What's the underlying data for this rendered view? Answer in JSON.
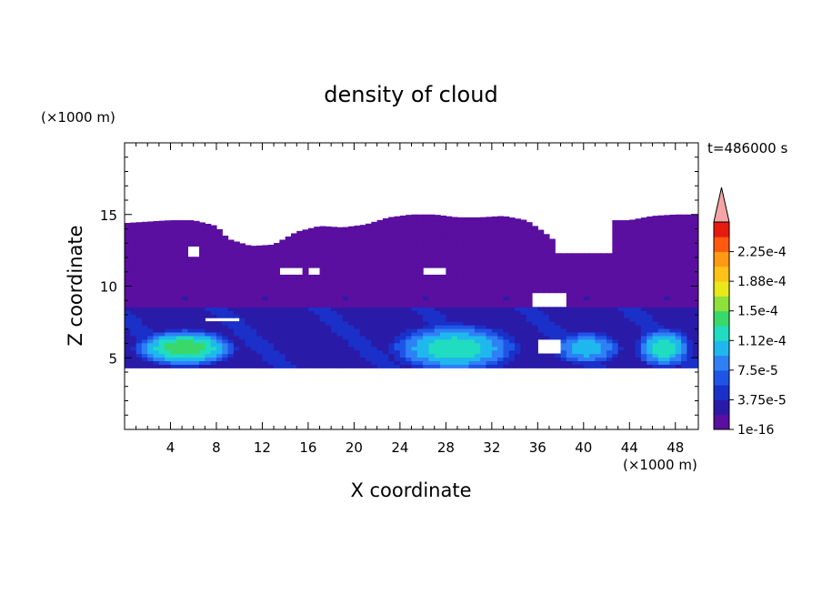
{
  "chart_data": {
    "type": "heatmap",
    "title": "density of cloud",
    "xlabel": "X coordinate",
    "ylabel": "Z coordinate",
    "x_unit": "(×1000 m)",
    "y_unit": "(×1000 m)",
    "time_label": "t=486000 s",
    "xlim": [
      0,
      50
    ],
    "ylim": [
      0,
      20
    ],
    "x_ticks": [
      4,
      8,
      12,
      16,
      20,
      24,
      28,
      32,
      36,
      40,
      44,
      48
    ],
    "y_ticks": [
      5,
      10,
      15
    ],
    "grid": false,
    "colorbar": {
      "position": "right",
      "extend": "max",
      "labels": [
        "1e-16",
        "3.75e-5",
        "7.5e-5",
        "1.12e-4",
        "1.5e-4",
        "1.88e-4",
        "2.25e-4"
      ],
      "levels": [
        1e-16,
        1.875e-05,
        3.75e-05,
        5.625e-05,
        7.5e-05,
        9.375e-05,
        0.000112,
        0.000131,
        0.00015,
        0.000169,
        0.000188,
        0.000206,
        0.000225,
        0.000244
      ],
      "colors": [
        "#5a0fa0",
        "#2a1aa8",
        "#1a30c8",
        "#1f55e6",
        "#2f80f5",
        "#1fb8ee",
        "#20dcc0",
        "#3ad86a",
        "#8ee03a",
        "#e8e81a",
        "#ffc218",
        "#ff9a12",
        "#ff5a10",
        "#e81a10"
      ],
      "extend_color": "#f4a6a6"
    },
    "cloud_layer": {
      "base_z": 4.3,
      "top_z_profile": {
        "x": [
          0,
          2,
          4,
          6,
          8,
          9,
          11,
          13,
          15,
          17,
          19,
          21,
          23,
          25,
          27,
          29,
          31,
          33,
          35,
          36.5,
          38,
          40,
          42,
          44,
          46,
          48,
          50
        ],
        "z": [
          14.4,
          14.5,
          14.6,
          14.6,
          14.2,
          13.3,
          12.8,
          12.9,
          13.8,
          14.2,
          14.1,
          14.3,
          14.8,
          15.0,
          15.0,
          14.8,
          14.8,
          14.9,
          14.6,
          13.8,
          12.8,
          13.5,
          14.6,
          14.6,
          14.9,
          15.0,
          15.0
        ]
      },
      "dense_cores": [
        {
          "x_range": [
            0,
            10.5
          ],
          "z_range": [
            4.3,
            6.8
          ],
          "peak": 0.000112
        },
        {
          "x_range": [
            22,
            35.5
          ],
          "z_range": [
            4.3,
            7.6
          ],
          "peak": 9.375e-05
        },
        {
          "x_range": [
            36.5,
            44
          ],
          "z_range": [
            4.3,
            6.6
          ],
          "peak": 7.5e-05
        },
        {
          "x_range": [
            44,
            50
          ],
          "z_range": [
            4.3,
            7.0
          ],
          "peak": 9.375e-05
        }
      ],
      "clear_gaps": [
        {
          "x_range": [
            5.5,
            6.5
          ],
          "z_range": [
            12.0,
            12.8
          ]
        },
        {
          "x_range": [
            13.5,
            15.5
          ],
          "z_range": [
            10.8,
            11.3
          ]
        },
        {
          "x_range": [
            16,
            17
          ],
          "z_range": [
            10.8,
            11.2
          ]
        },
        {
          "x_range": [
            37.5,
            42.5
          ],
          "z_range": [
            12.3,
            14.8
          ]
        },
        {
          "x_range": [
            35.5,
            38.5
          ],
          "z_range": [
            8.5,
            9.6
          ]
        },
        {
          "x_range": [
            35.8,
            38
          ],
          "z_range": [
            5.3,
            6.3
          ]
        },
        {
          "x_range": [
            7,
            10
          ],
          "z_range": [
            7.5,
            7.9
          ]
        },
        {
          "x_range": [
            26,
            28
          ],
          "z_range": [
            10.8,
            11.4
          ]
        }
      ]
    }
  }
}
